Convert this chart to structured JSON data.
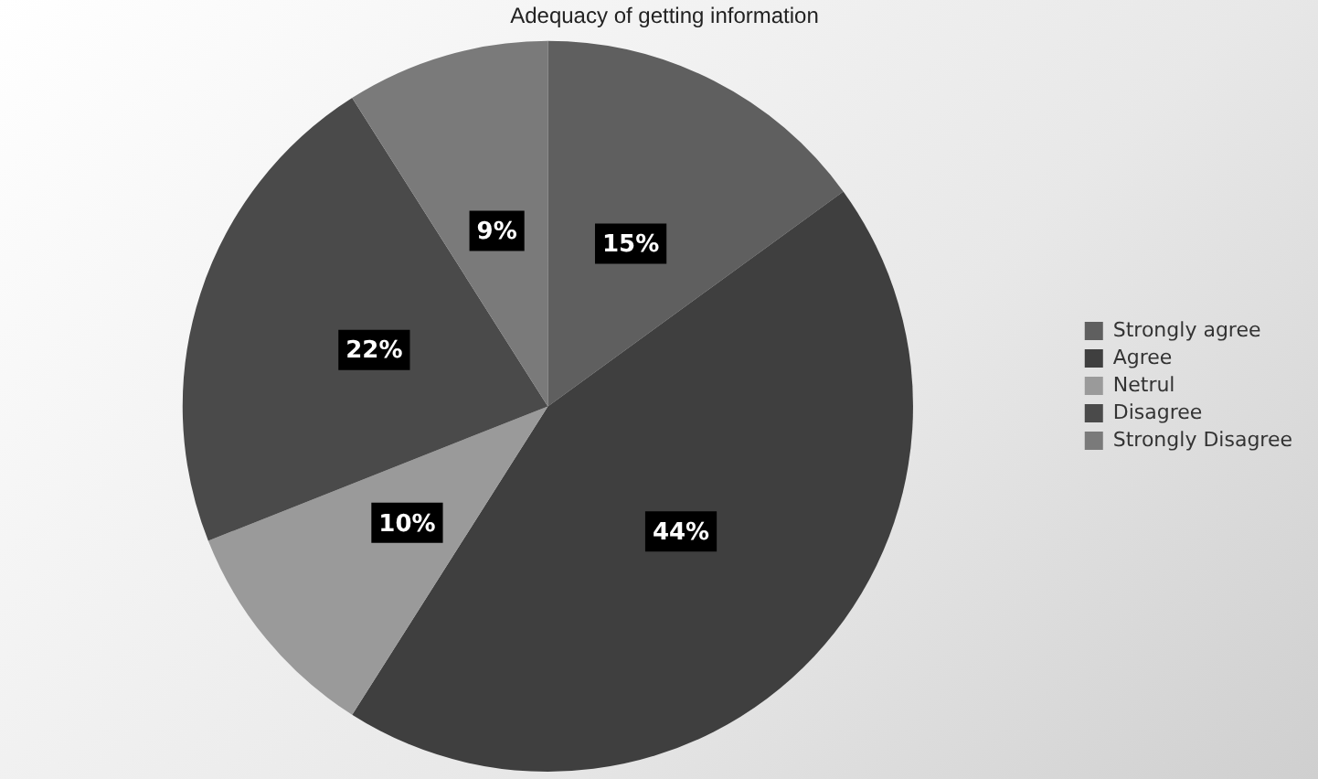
{
  "chart_data": {
    "type": "pie",
    "title": "Adequacy of getting information",
    "categories": [
      "Strongly agree",
      "Agree",
      "Netrul",
      "Disagree",
      "Strongly Disagree"
    ],
    "values": [
      15,
      44,
      10,
      22,
      9
    ],
    "colors": [
      "#5f5f5f",
      "#3f3f3f",
      "#9a9a9a",
      "#4a4a4a",
      "#7a7a7a"
    ],
    "value_labels": [
      "15%",
      "44%",
      "10%",
      "22%",
      "9%"
    ],
    "legend": "right"
  }
}
